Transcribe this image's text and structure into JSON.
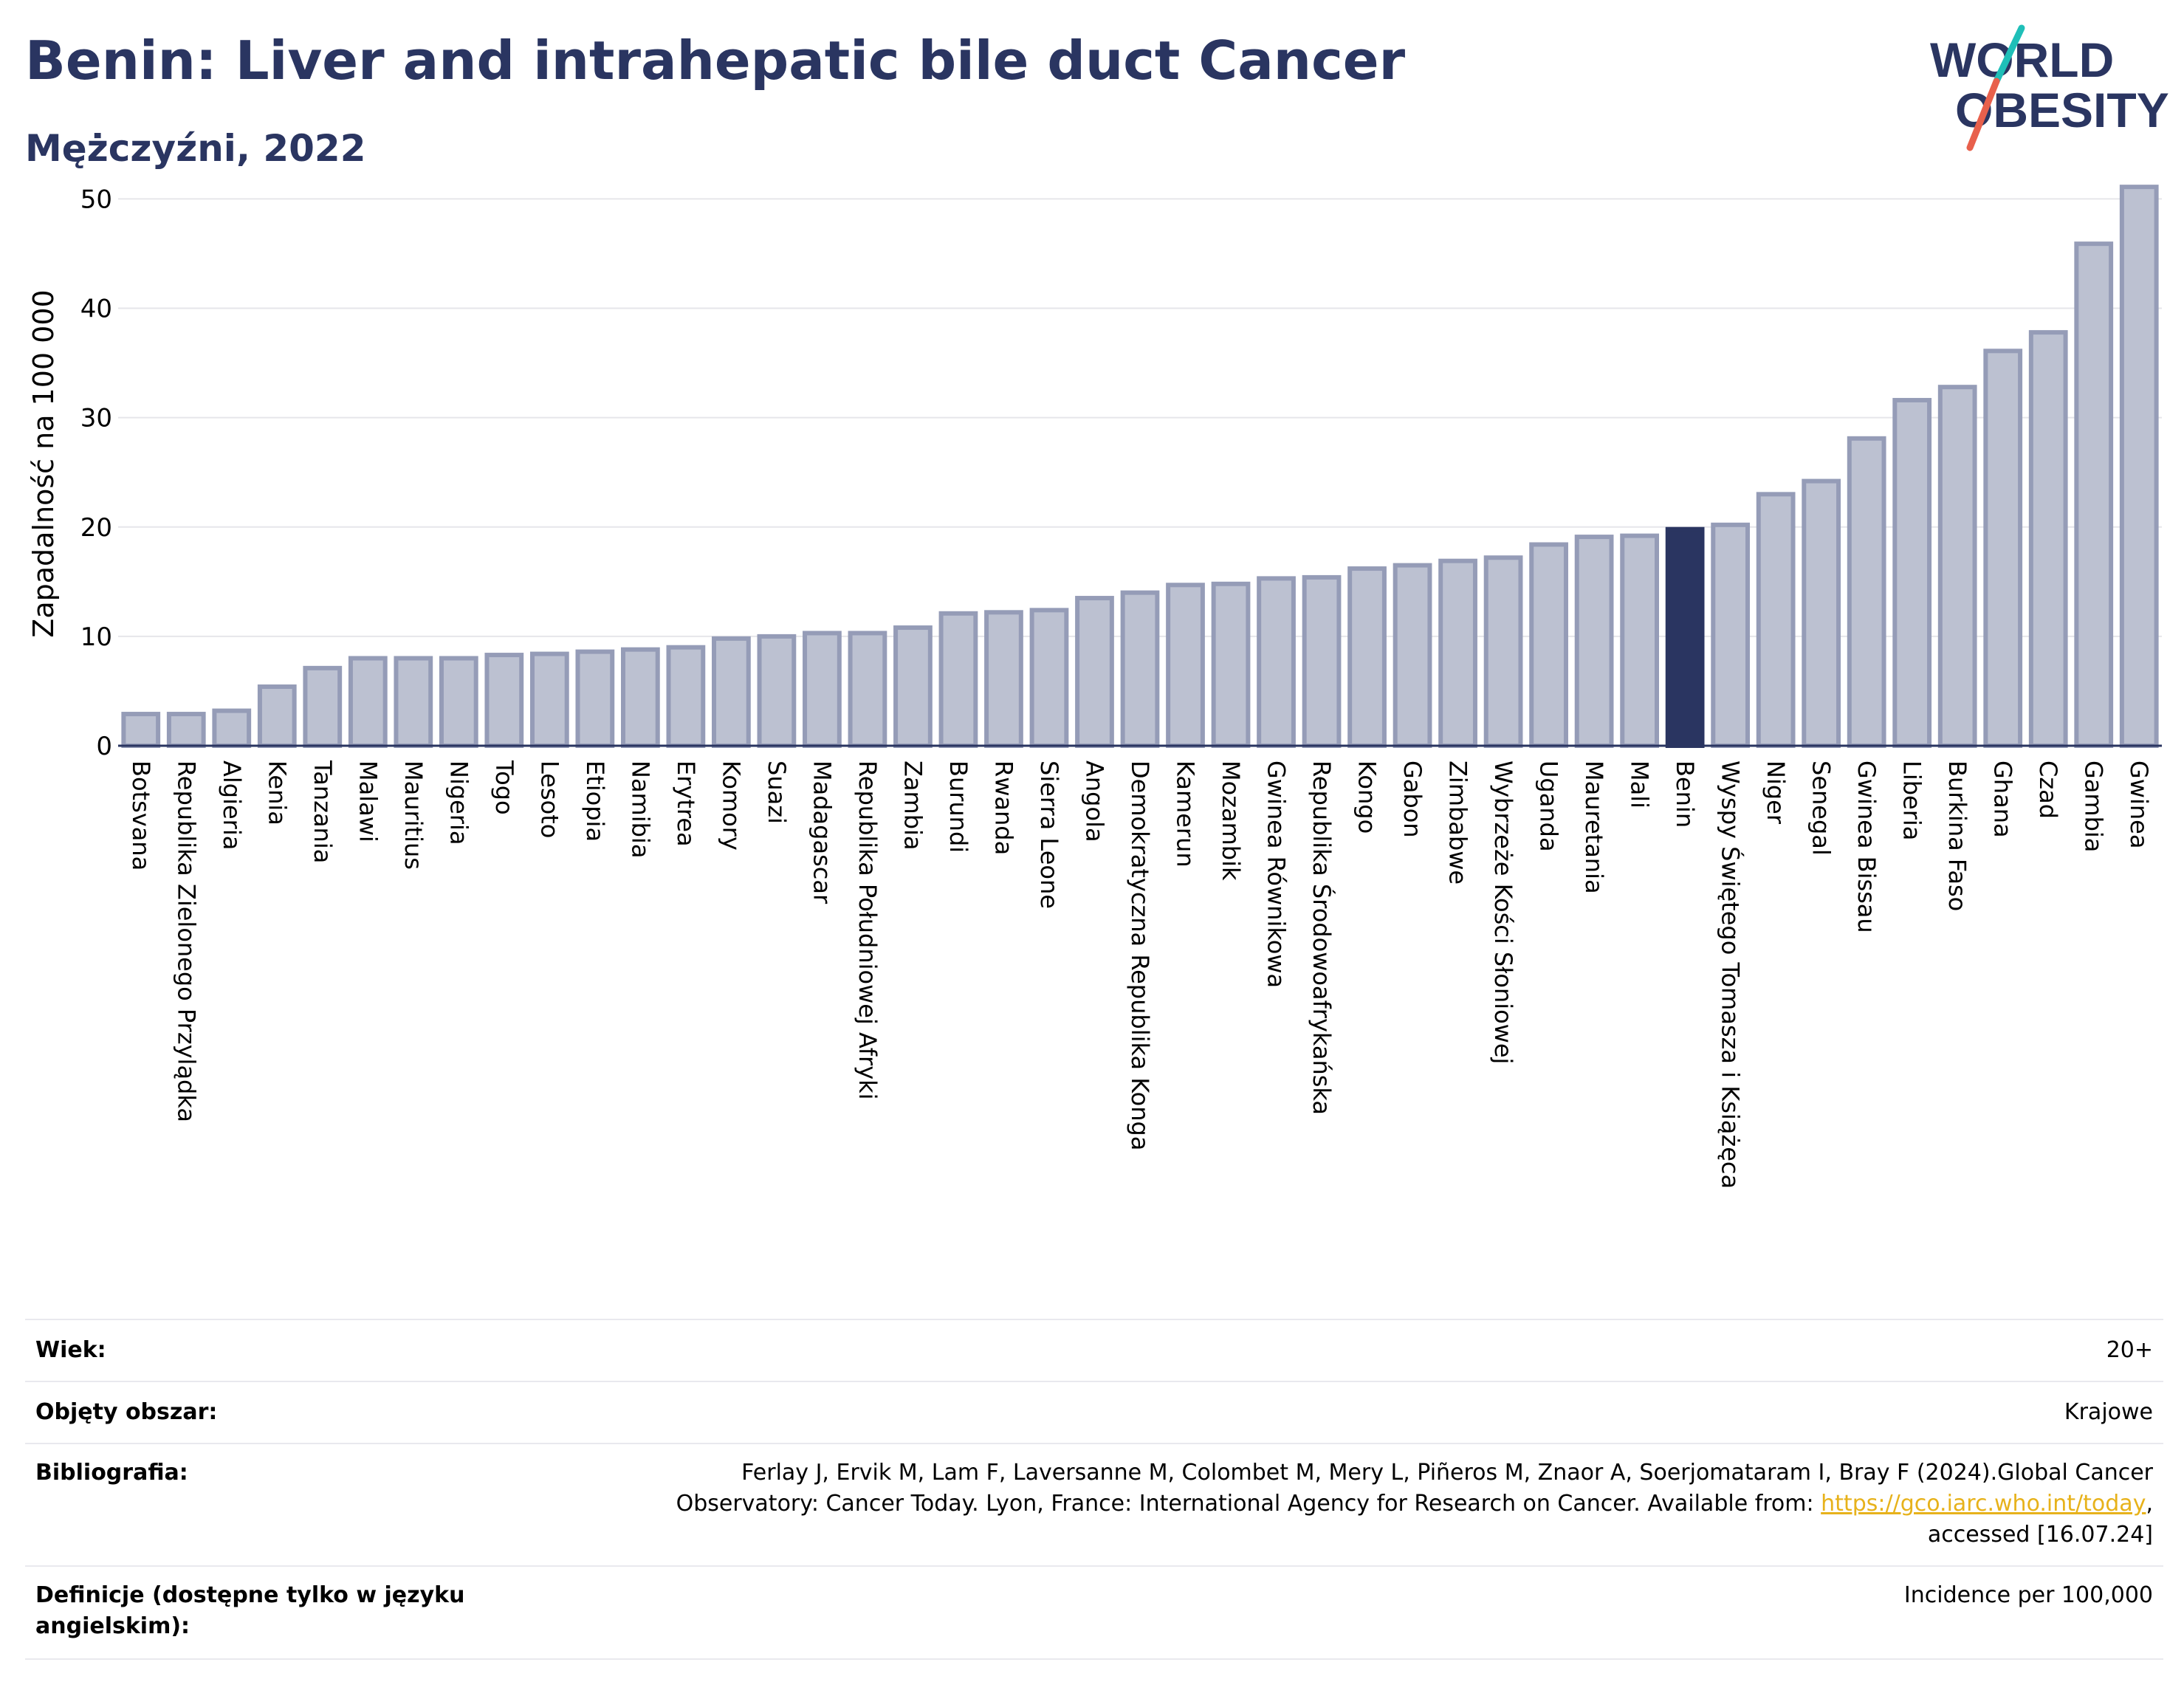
{
  "header": {
    "title": "Benin: Liver and intrahepatic bile duct Cancer",
    "subtitle": "Mężczyźni, 2022"
  },
  "logo": {
    "line1": "WORLD",
    "line2": "OBESITY",
    "color_text": "#2a3561",
    "color_slash_top": "#1fbfb8",
    "color_slash_bottom": "#e8604c"
  },
  "colors": {
    "bar": "#bcc1d1",
    "bar_stroke": "#959cb7",
    "highlight": "#2a3561",
    "grid": "#e6e6ea",
    "axis": "#2a3561"
  },
  "chart_data": {
    "type": "bar",
    "ylabel": "Zapadalność na 100 000",
    "xlabel": "",
    "ylim": [
      0,
      53
    ],
    "yticks": [
      0,
      10,
      20,
      30,
      40,
      50
    ],
    "grid": true,
    "highlight": "Benin",
    "categories": [
      "Botsvana",
      "Republika Zielonego Przylądka",
      "Algieria",
      "Kenia",
      "Tanzania",
      "Malawi",
      "Mauritius",
      "Nigeria",
      "Togo",
      "Lesoto",
      "Etiopia",
      "Namibia",
      "Erytrea",
      "Komory",
      "Suazi",
      "Madagascar",
      "Republika Południowej Afryki",
      "Zambia",
      "Burundi",
      "Rwanda",
      "Sierra Leone",
      "Angola",
      "Demokratyczna Republika Konga",
      "Kamerun",
      "Mozambik",
      "Gwinea Równikowa",
      "Republika Środowoafrykańska",
      "Kongo",
      "Gabon",
      "Zimbabwe",
      "Wybrzeże Kości Słoniowej",
      "Uganda",
      "Mauretania",
      "Mali",
      "Benin",
      "Wyspy Świętego Tomasza i Książęca",
      "Niger",
      "Senegal",
      "Gwinea Bissau",
      "Liberia",
      "Burkina Faso",
      "Ghana",
      "Czad",
      "Gambia",
      "Gwinea"
    ],
    "values": [
      2.9,
      2.9,
      3.2,
      5.4,
      7.1,
      8.0,
      8.0,
      8.0,
      8.3,
      8.4,
      8.6,
      8.8,
      9.0,
      9.8,
      10.0,
      10.3,
      10.3,
      10.8,
      12.1,
      12.2,
      12.4,
      13.5,
      14.0,
      14.7,
      14.8,
      15.3,
      15.4,
      16.2,
      16.5,
      16.9,
      17.2,
      18.4,
      19.1,
      19.2,
      19.8,
      20.2,
      23.0,
      24.2,
      28.1,
      31.6,
      32.8,
      36.1,
      37.8,
      45.9,
      51.1
    ]
  },
  "info": {
    "age_label": "Wiek:",
    "age_value": "20+",
    "area_label": "Objęty obszar:",
    "area_value": "Krajowe",
    "bib_label": "Bibliografia:",
    "bib_line1": "Ferlay J, Ervik M, Lam F, Laversanne M, Colombet M, Mery L, Piñeros M, Znaor A, Soerjomataram I, Bray F (2024).Global Cancer",
    "bib_line2": "Observatory: Cancer Today. Lyon, France: International Agency for Research on Cancer. Available from: ",
    "bib_link": "https://gco.iarc.who.int/today",
    "bib_line2_end": ",",
    "bib_line3": "accessed [16.07.24]",
    "def_label_1": "Definicje (dostępne tylko w języku",
    "def_label_2": "angielskim):",
    "def_value": "Incidence per 100,000"
  }
}
